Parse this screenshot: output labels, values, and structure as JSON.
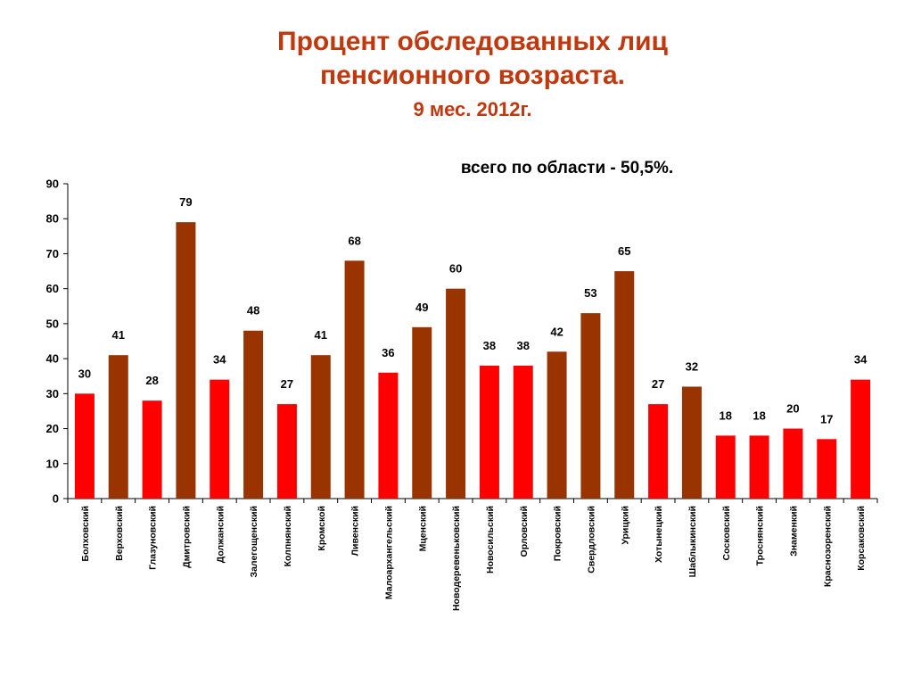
{
  "chart_data": {
    "type": "bar",
    "title": "Процент обследованных лиц пенсионного возраста.",
    "title_lines": [
      "Процент обследованных лиц",
      "пенсионного возраста."
    ],
    "subtitle": "9 мес. 2012г.",
    "note": "всего по области - 50,5%.",
    "ylim": [
      0,
      90
    ],
    "yticks": [
      0,
      10,
      20,
      30,
      40,
      50,
      60,
      70,
      80,
      90
    ],
    "grid": false,
    "categories": [
      "Болховский",
      "Верховский",
      "Глазуновский",
      "Дмитровский",
      "Должанский",
      "Залегощенский",
      "Колпнянский",
      "Кромской",
      "Ливенский",
      "Малоархангельский",
      "Мценский",
      "Новодеревеньковский",
      "Новосильский",
      "Орловский",
      "Покровский",
      "Свердловский",
      "Урицкий",
      "Хотынецкий",
      "Шаблыкинский",
      "Сосковский",
      "Троснянский",
      "Знаменкий",
      "Краснозоренский",
      "Корсаковский"
    ],
    "values": [
      30,
      41,
      28,
      79,
      34,
      48,
      27,
      41,
      68,
      36,
      49,
      60,
      38,
      38,
      42,
      53,
      65,
      27,
      32,
      18,
      18,
      20,
      17,
      34
    ],
    "bar_colors": [
      "#ff0000",
      "#993300",
      "#ff0000",
      "#993300",
      "#ff0000",
      "#993300",
      "#ff0000",
      "#993300",
      "#993300",
      "#ff0000",
      "#993300",
      "#993300",
      "#ff0000",
      "#ff0000",
      "#993300",
      "#993300",
      "#993300",
      "#ff0000",
      "#993300",
      "#ff0000",
      "#ff0000",
      "#ff0000",
      "#ff0000",
      "#ff0000"
    ]
  },
  "colors": {
    "title": "#c0380e",
    "axis": "#000000"
  }
}
